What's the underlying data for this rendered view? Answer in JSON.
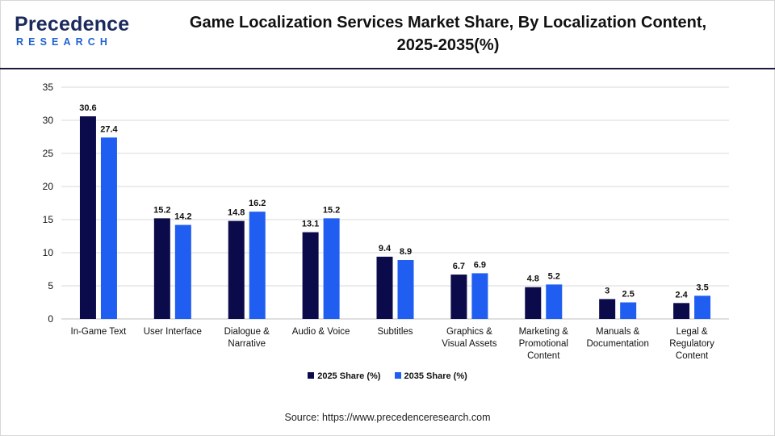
{
  "header": {
    "logo_word": "Precedence",
    "logo_sub": "RESEARCH",
    "title_line1": "Game Localization Services Market Share, By Localization Content,",
    "title_line2": "2025-2035(%)"
  },
  "colors": {
    "series_2025": "#0b0b4b",
    "series_2035": "#1f5ef0",
    "grid": "#d9d9d9",
    "logo_dark": "#1b2a5c",
    "logo_blue": "#1e62d0"
  },
  "chart_data": {
    "type": "bar",
    "title": "Game Localization Services Market Share, By Localization Content, 2025-2035(%)",
    "xlabel": "",
    "ylabel": "",
    "ylim": [
      0,
      35
    ],
    "yticks": [
      0,
      5,
      10,
      15,
      20,
      25,
      30,
      35
    ],
    "grid": true,
    "legend_position": "bottom",
    "categories": [
      [
        "In-Game Text"
      ],
      [
        "User Interface"
      ],
      [
        "Dialogue &",
        "Narrative"
      ],
      [
        "Audio & Voice"
      ],
      [
        "Subtitles"
      ],
      [
        "Graphics &",
        "Visual Assets"
      ],
      [
        "Marketing &",
        "Promotional",
        "Content"
      ],
      [
        "Manuals &",
        "Documentation"
      ],
      [
        "Legal &",
        "Regulatory",
        "Content"
      ]
    ],
    "series": [
      {
        "name": "2025 Share (%)",
        "values": [
          30.6,
          15.2,
          14.8,
          13.1,
          9.4,
          6.7,
          4.8,
          3,
          2.4
        ],
        "labels": [
          "30.6",
          "15.2",
          "14.8",
          "13.1",
          "9.4",
          "6.7",
          "4.8",
          "3",
          "2.4"
        ]
      },
      {
        "name": "2035 Share (%)",
        "values": [
          27.4,
          14.2,
          16.2,
          15.2,
          8.9,
          6.9,
          5.2,
          2.5,
          3.5
        ],
        "labels": [
          "27.4",
          "14.2",
          "16.2",
          "15.2",
          "8.9",
          "6.9",
          "5.2",
          "2.5",
          "3.5"
        ]
      }
    ]
  },
  "footer": {
    "source": "Source: https://www.precedenceresearch.com"
  }
}
